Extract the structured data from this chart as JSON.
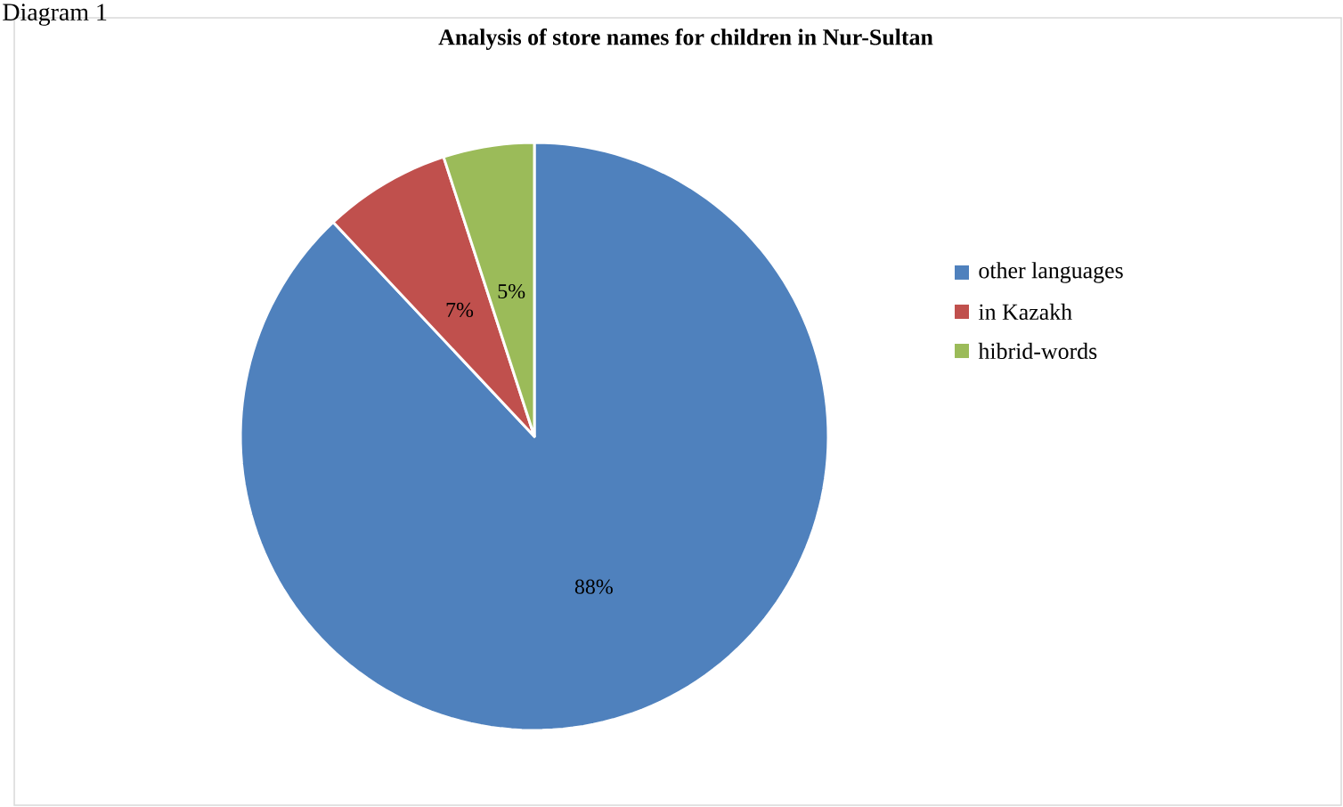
{
  "chart_data": {
    "type": "pie",
    "title": "Analysis of store names for children in Nur-Sultan",
    "categories": [
      "other languages",
      "in Kazakh",
      "hibrid-words"
    ],
    "values": [
      88,
      7,
      5
    ],
    "colors": [
      "#4f81bd",
      "#c0504d",
      "#9bbb59"
    ],
    "value_labels": [
      "88%",
      "7%",
      "5%"
    ],
    "legend": "right",
    "annotations": [
      "Diagram 1"
    ]
  }
}
